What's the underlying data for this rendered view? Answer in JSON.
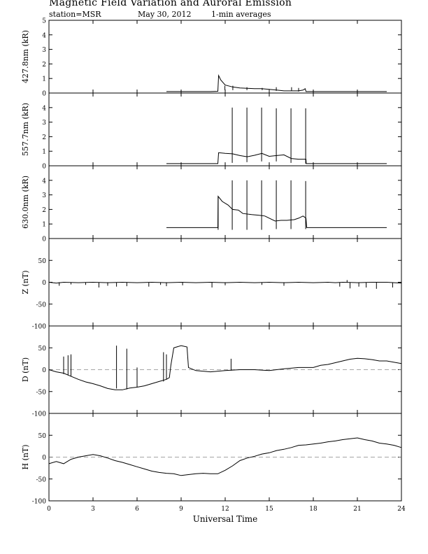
{
  "header": {
    "title": "Magnetic Field Variation and Auroral Emission",
    "station": "station=MSR",
    "date": "May 30, 2012",
    "averaging": "1-min averages"
  },
  "chart_data": [
    {
      "type": "line",
      "ylabel": "427.8nm (kR)",
      "ylim": [
        0,
        5
      ],
      "yticks": [
        0,
        1,
        2,
        3,
        4,
        5
      ],
      "xlim": [
        0,
        24
      ],
      "series": [
        {
          "points": [
            [
              8.0,
              0.1
            ],
            [
              10.0,
              0.1
            ],
            [
              11.0,
              0.1
            ],
            [
              11.5,
              0.12
            ],
            [
              11.55,
              1.2
            ],
            [
              11.7,
              0.9
            ],
            [
              12.0,
              0.55
            ],
            [
              12.5,
              0.42
            ],
            [
              13.0,
              0.35
            ],
            [
              13.5,
              0.32
            ],
            [
              14.0,
              0.3
            ],
            [
              14.5,
              0.3
            ],
            [
              15.0,
              0.25
            ],
            [
              15.5,
              0.2
            ],
            [
              16.0,
              0.15
            ],
            [
              16.5,
              0.15
            ],
            [
              17.0,
              0.15
            ],
            [
              17.3,
              0.2
            ],
            [
              17.45,
              0.3
            ],
            [
              17.5,
              0.1
            ],
            [
              18.0,
              0.1
            ],
            [
              20.0,
              0.1
            ],
            [
              22.0,
              0.1
            ],
            [
              23.0,
              0.1
            ]
          ],
          "spikes": [
            [
              11.98,
              0.2,
              0.5
            ],
            [
              12.52,
              0.2,
              0.5
            ],
            [
              13.48,
              0.2,
              0.4
            ],
            [
              14.52,
              0.2,
              0.35
            ],
            [
              15.48,
              0.15,
              0.4
            ],
            [
              16.52,
              0.15,
              0.4
            ],
            [
              17.0,
              0.1,
              0.35
            ]
          ]
        }
      ]
    },
    {
      "type": "line",
      "ylabel": "557.7nm (kR)",
      "ylim": [
        0,
        5
      ],
      "yticks": [
        0,
        1,
        2,
        3,
        4
      ],
      "xlim": [
        0,
        24
      ],
      "series": [
        {
          "points": [
            [
              8.0,
              0.15
            ],
            [
              10.0,
              0.15
            ],
            [
              11.5,
              0.15
            ],
            [
              11.55,
              0.9
            ],
            [
              12.0,
              0.85
            ],
            [
              12.5,
              0.82
            ],
            [
              13.0,
              0.7
            ],
            [
              13.5,
              0.62
            ],
            [
              14.0,
              0.72
            ],
            [
              14.5,
              0.85
            ],
            [
              15.0,
              0.65
            ],
            [
              15.5,
              0.7
            ],
            [
              16.0,
              0.75
            ],
            [
              16.5,
              0.5
            ],
            [
              17.0,
              0.45
            ],
            [
              17.5,
              0.45
            ],
            [
              17.52,
              0.15
            ],
            [
              18.0,
              0.15
            ],
            [
              20.0,
              0.15
            ],
            [
              23.0,
              0.15
            ]
          ],
          "spikes": [
            [
              12.48,
              0.2,
              4.0
            ],
            [
              13.48,
              0.25,
              4.0
            ],
            [
              14.48,
              0.3,
              4.0
            ],
            [
              15.48,
              0.3,
              3.95
            ],
            [
              16.48,
              0.2,
              3.95
            ],
            [
              17.48,
              0.15,
              3.95
            ]
          ]
        }
      ]
    },
    {
      "type": "line",
      "ylabel": "630.0nm (kR)",
      "ylim": [
        0,
        5
      ],
      "yticks": [
        0,
        1,
        2,
        3,
        4
      ],
      "xlim": [
        0,
        24
      ],
      "series": [
        {
          "points": [
            [
              8.0,
              0.75
            ],
            [
              10.0,
              0.75
            ],
            [
              11.5,
              0.75
            ],
            [
              11.52,
              2.9
            ],
            [
              11.8,
              2.55
            ],
            [
              12.2,
              2.3
            ],
            [
              12.5,
              2.0
            ],
            [
              12.9,
              1.95
            ],
            [
              13.2,
              1.72
            ],
            [
              13.8,
              1.65
            ],
            [
              14.3,
              1.6
            ],
            [
              14.7,
              1.55
            ],
            [
              15.0,
              1.4
            ],
            [
              15.4,
              1.2
            ],
            [
              15.8,
              1.25
            ],
            [
              16.2,
              1.25
            ],
            [
              16.7,
              1.3
            ],
            [
              17.0,
              1.4
            ],
            [
              17.3,
              1.55
            ],
            [
              17.5,
              1.4
            ],
            [
              17.55,
              0.75
            ],
            [
              18.0,
              0.75
            ],
            [
              20.0,
              0.75
            ],
            [
              23.0,
              0.75
            ]
          ],
          "spikes": [
            [
              11.52,
              0.6,
              2.9
            ],
            [
              12.48,
              0.6,
              4.0
            ],
            [
              13.48,
              0.6,
              4.0
            ],
            [
              14.48,
              0.6,
              4.0
            ],
            [
              15.48,
              0.65,
              4.0
            ],
            [
              16.48,
              0.65,
              4.0
            ],
            [
              17.48,
              0.65,
              3.95
            ]
          ]
        }
      ]
    },
    {
      "type": "line",
      "ylabel": "Z (nT)",
      "ylim": [
        -100,
        100
      ],
      "yticks": [
        -100,
        -50,
        0,
        50
      ],
      "xlim": [
        0,
        24
      ],
      "series": [
        {
          "points": [
            [
              0,
              0
            ],
            [
              0.5,
              -2
            ],
            [
              1.0,
              0
            ],
            [
              2.0,
              -1
            ],
            [
              3.0,
              0
            ],
            [
              4.0,
              -1
            ],
            [
              5.0,
              0
            ],
            [
              6.0,
              -1
            ],
            [
              7.0,
              0
            ],
            [
              8.0,
              -1
            ],
            [
              9.0,
              0
            ],
            [
              10.0,
              -1
            ],
            [
              11.0,
              0
            ],
            [
              12.0,
              -1
            ],
            [
              13.0,
              0
            ],
            [
              14.0,
              -1
            ],
            [
              15.0,
              0
            ],
            [
              16.0,
              -1
            ],
            [
              17.0,
              0
            ],
            [
              18.0,
              -1
            ],
            [
              19.0,
              0
            ],
            [
              19.5,
              -1
            ],
            [
              20.0,
              0
            ],
            [
              21.0,
              -1
            ],
            [
              22.0,
              0
            ],
            [
              23.0,
              0
            ],
            [
              24.0,
              -2
            ]
          ],
          "spikes": [
            [
              0.7,
              -8,
              0
            ],
            [
              1.5,
              -5,
              0
            ],
            [
              2.5,
              -6,
              0
            ],
            [
              3.4,
              -12,
              0
            ],
            [
              4.0,
              -8,
              0
            ],
            [
              4.6,
              -10,
              0
            ],
            [
              5.3,
              -9,
              0
            ],
            [
              6.8,
              -10,
              0
            ],
            [
              7.6,
              -6,
              0
            ],
            [
              8.0,
              -9,
              0
            ],
            [
              9.1,
              -7,
              0
            ],
            [
              11.1,
              -12,
              0
            ],
            [
              12.0,
              -7,
              0
            ],
            [
              14.5,
              -6,
              0
            ],
            [
              16.0,
              -8,
              0
            ],
            [
              19.8,
              -10,
              0
            ],
            [
              20.5,
              -14,
              0
            ],
            [
              21.1,
              -10,
              0
            ],
            [
              21.6,
              -12,
              0
            ],
            [
              22.3,
              -15,
              0
            ],
            [
              23.4,
              -12,
              0
            ],
            [
              20.3,
              0,
              5
            ]
          ]
        }
      ]
    },
    {
      "type": "line",
      "ylabel": "D (nT)",
      "ylim": [
        -100,
        100
      ],
      "yticks": [
        -100,
        -50,
        0,
        50
      ],
      "xlim": [
        0,
        24
      ],
      "dashed_zero": true,
      "series": [
        {
          "points": [
            [
              0,
              0
            ],
            [
              0.5,
              -5
            ],
            [
              1.0,
              -8
            ],
            [
              1.5,
              -15
            ],
            [
              2.0,
              -22
            ],
            [
              2.5,
              -28
            ],
            [
              3.0,
              -32
            ],
            [
              3.5,
              -37
            ],
            [
              4.0,
              -43
            ],
            [
              4.5,
              -46
            ],
            [
              5.0,
              -46
            ],
            [
              5.5,
              -42
            ],
            [
              6.0,
              -40
            ],
            [
              6.5,
              -37
            ],
            [
              7.0,
              -32
            ],
            [
              7.5,
              -27
            ],
            [
              8.0,
              -22
            ],
            [
              8.2,
              -18
            ],
            [
              8.3,
              10
            ],
            [
              8.5,
              50
            ],
            [
              9.0,
              55
            ],
            [
              9.4,
              52
            ],
            [
              9.5,
              5
            ],
            [
              10.0,
              -2
            ],
            [
              11.0,
              -5
            ],
            [
              12.0,
              -2
            ],
            [
              13.0,
              0
            ],
            [
              14.0,
              0
            ],
            [
              15.0,
              -2
            ],
            [
              16.0,
              2
            ],
            [
              17.0,
              5
            ],
            [
              18.0,
              5
            ],
            [
              18.5,
              10
            ],
            [
              19.0,
              12
            ],
            [
              19.5,
              16
            ],
            [
              20.0,
              20
            ],
            [
              20.5,
              24
            ],
            [
              21.0,
              26
            ],
            [
              21.5,
              25
            ],
            [
              22.0,
              23
            ],
            [
              22.5,
              20
            ],
            [
              23.0,
              20
            ],
            [
              24.0,
              14
            ]
          ],
          "spikes": [
            [
              1.0,
              -10,
              30
            ],
            [
              1.3,
              -12,
              33
            ],
            [
              1.5,
              -15,
              35
            ],
            [
              4.6,
              -43,
              55
            ],
            [
              5.3,
              -45,
              48
            ],
            [
              6.0,
              -40,
              5
            ],
            [
              7.8,
              -27,
              40
            ],
            [
              8.0,
              -22,
              35
            ],
            [
              12.4,
              -2,
              25
            ]
          ]
        }
      ]
    },
    {
      "type": "line",
      "ylabel": "H (nT)",
      "ylim": [
        -100,
        100
      ],
      "yticks": [
        -100,
        -50,
        0,
        50
      ],
      "xlim": [
        0,
        24
      ],
      "xlabel": "Universal Time",
      "xticks": [
        0,
        3,
        6,
        9,
        12,
        15,
        18,
        21,
        24
      ],
      "dashed_zero": true,
      "series": [
        {
          "points": [
            [
              0,
              -15
            ],
            [
              0.5,
              -10
            ],
            [
              1.0,
              -15
            ],
            [
              1.5,
              -5
            ],
            [
              2.0,
              0
            ],
            [
              2.5,
              3
            ],
            [
              3.0,
              6
            ],
            [
              3.5,
              3
            ],
            [
              4.0,
              -2
            ],
            [
              4.5,
              -8
            ],
            [
              5.0,
              -12
            ],
            [
              5.5,
              -17
            ],
            [
              6.0,
              -22
            ],
            [
              6.5,
              -27
            ],
            [
              7.0,
              -32
            ],
            [
              7.5,
              -35
            ],
            [
              8.0,
              -37
            ],
            [
              8.5,
              -38
            ],
            [
              9.0,
              -42
            ],
            [
              9.5,
              -40
            ],
            [
              10.0,
              -38
            ],
            [
              10.5,
              -37
            ],
            [
              11.0,
              -38
            ],
            [
              11.5,
              -38
            ],
            [
              12.0,
              -30
            ],
            [
              12.5,
              -20
            ],
            [
              13.0,
              -8
            ],
            [
              13.5,
              -2
            ],
            [
              14.0,
              2
            ],
            [
              14.5,
              7
            ],
            [
              15.0,
              10
            ],
            [
              15.5,
              15
            ],
            [
              16.0,
              18
            ],
            [
              16.5,
              22
            ],
            [
              17.0,
              27
            ],
            [
              17.5,
              28
            ],
            [
              18.0,
              30
            ],
            [
              18.5,
              32
            ],
            [
              19.0,
              35
            ],
            [
              19.5,
              37
            ],
            [
              20.0,
              40
            ],
            [
              20.5,
              42
            ],
            [
              21.0,
              44
            ],
            [
              21.5,
              40
            ],
            [
              22.0,
              37
            ],
            [
              22.5,
              32
            ],
            [
              23.0,
              30
            ],
            [
              23.5,
              27
            ],
            [
              24.0,
              22
            ]
          ],
          "spikes": []
        }
      ]
    }
  ]
}
